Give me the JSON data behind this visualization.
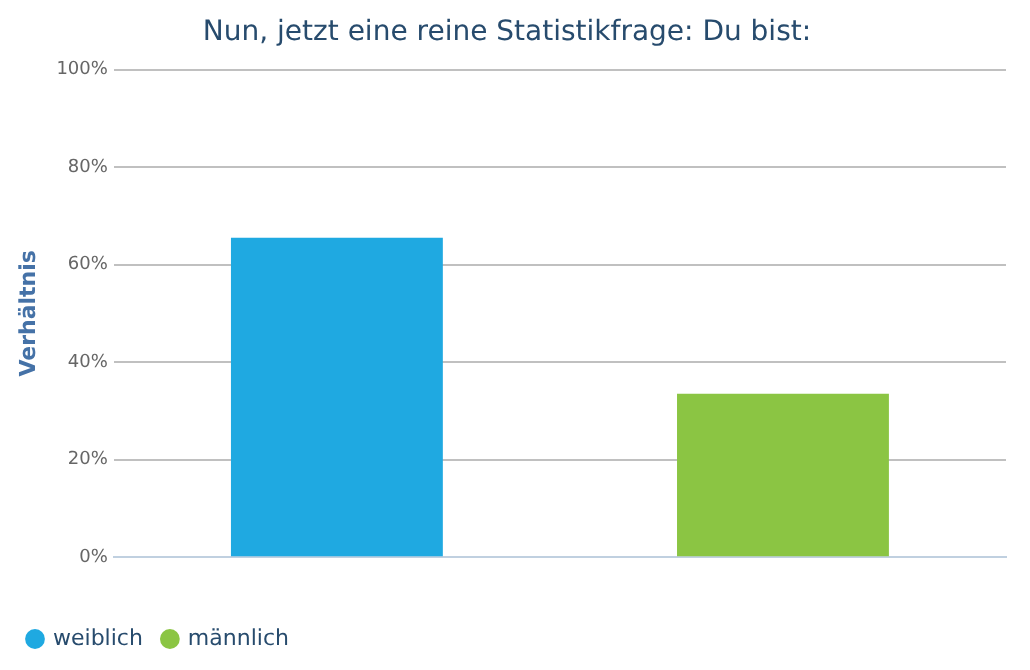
{
  "chart_data": {
    "type": "bar",
    "title": "Nun, jetzt eine reine Statistikfrage: Du bist:",
    "ylabel": "Verhältnis",
    "categories": [
      null,
      null
    ],
    "series": [
      {
        "name": "weiblich",
        "color": "#1fa9e1",
        "values": [
          65.5,
          null
        ]
      },
      {
        "name": "männlich",
        "color": "#8bc543",
        "values": [
          null,
          33.5
        ]
      }
    ],
    "ylim": [
      0,
      100
    ],
    "yticks": [
      {
        "value": 0,
        "label": "0%"
      },
      {
        "value": 20,
        "label": "20%"
      },
      {
        "value": 40,
        "label": "40%"
      },
      {
        "value": 60,
        "label": "60%"
      },
      {
        "value": 80,
        "label": "80%"
      },
      {
        "value": 100,
        "label": "100%"
      }
    ],
    "grid": "y",
    "legend": "bottom left"
  }
}
